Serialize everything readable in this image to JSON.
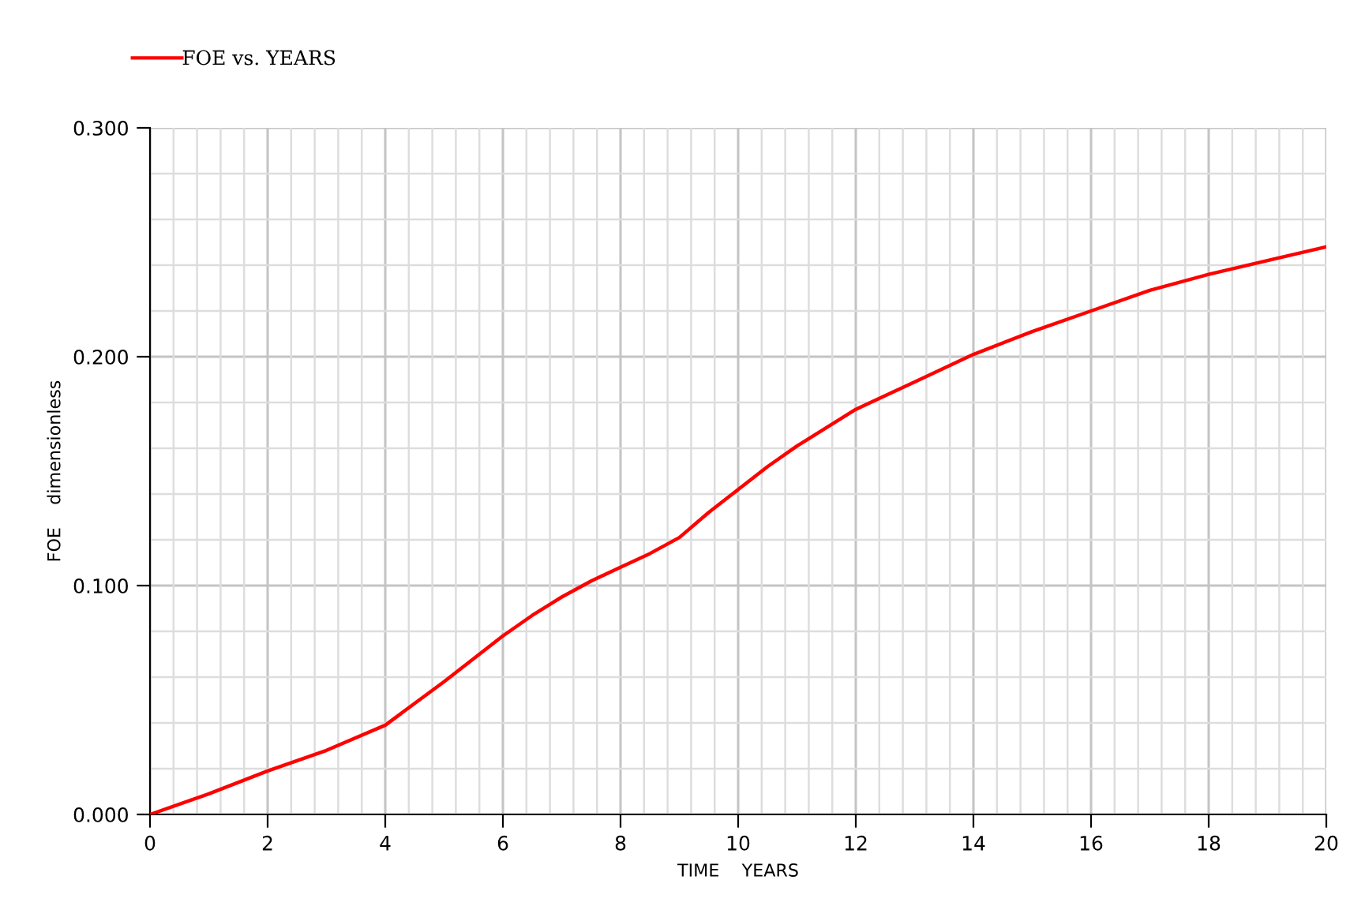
{
  "chart_data": {
    "type": "line",
    "xlabel": "TIME    YEARS",
    "ylabel": "FOE    dimensionless",
    "series": [
      {
        "name": "FOE vs. YEARS",
        "color": "#ff0000",
        "x": [
          0,
          1,
          2,
          3,
          4,
          5,
          6,
          6.5,
          7,
          7.5,
          8,
          8.5,
          9,
          9.5,
          10,
          10.5,
          11,
          12,
          13,
          14,
          15,
          16,
          17,
          18,
          19,
          20
        ],
        "values": [
          0,
          0.009,
          0.019,
          0.028,
          0.039,
          0.058,
          0.078,
          0.087,
          0.095,
          0.102,
          0.108,
          0.114,
          0.121,
          0.132,
          0.142,
          0.152,
          0.161,
          0.177,
          0.189,
          0.201,
          0.211,
          0.22,
          0.229,
          0.236,
          0.242,
          0.248
        ]
      }
    ],
    "xlim": [
      0,
      20
    ],
    "xticks": [
      0,
      2,
      4,
      6,
      8,
      10,
      12,
      14,
      16,
      18,
      20
    ],
    "ylim": [
      0,
      0.3
    ],
    "yticks": [
      {
        "value": 0,
        "label": "0.000"
      },
      {
        "value": 0.1,
        "label": "0.100"
      },
      {
        "value": 0.2,
        "label": "0.200"
      },
      {
        "value": 0.3,
        "label": "0.300"
      }
    ],
    "grid": true,
    "legend": "top left",
    "marker": "none",
    "line_style": "solid"
  }
}
